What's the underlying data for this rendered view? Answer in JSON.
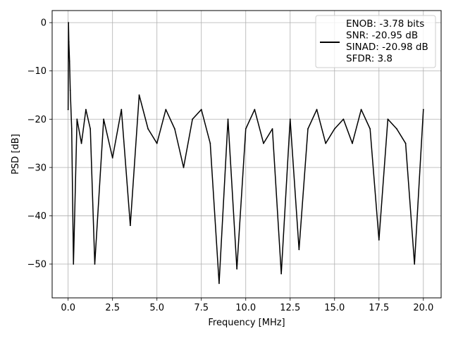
{
  "chart_data": {
    "type": "line",
    "title": "",
    "xlabel": "Frequency [MHz]",
    "ylabel": "PSD [dB]",
    "xlim": [
      -0.9,
      21.0
    ],
    "ylim": [
      -57,
      2.5
    ],
    "xticks": [
      0.0,
      2.5,
      5.0,
      7.5,
      10.0,
      12.5,
      15.0,
      17.5,
      20.0
    ],
    "xtick_labels": [
      "0.0",
      "2.5",
      "5.0",
      "7.5",
      "10.0",
      "12.5",
      "15.0",
      "17.5",
      "20.0"
    ],
    "yticks": [
      0,
      -10,
      -20,
      -30,
      -40,
      -50
    ],
    "ytick_labels": [
      "0",
      "−10",
      "−20",
      "−30",
      "−40",
      "−50"
    ],
    "grid": true,
    "legend_position": "top-right",
    "series": [
      {
        "color": "#000000",
        "legend_lines": [
          "ENOB: -3.78 bits",
          "SNR: -20.95 dB",
          "SINAD: -20.98 dB",
          "SFDR: 3.8"
        ],
        "x": [
          0.0,
          0.02,
          0.04,
          0.08,
          0.12,
          0.2,
          0.3,
          0.5,
          0.75,
          1.0,
          1.25,
          1.5,
          2.0,
          2.5,
          3.0,
          3.5,
          4.0,
          4.5,
          5.0,
          5.5,
          6.0,
          6.5,
          7.0,
          7.5,
          8.0,
          8.5,
          9.0,
          9.5,
          10.0,
          10.5,
          11.0,
          11.5,
          12.0,
          12.5,
          13.0,
          13.5,
          14.0,
          14.5,
          15.0,
          15.5,
          16.0,
          16.5,
          17.0,
          17.5,
          18.0,
          18.5,
          19.0,
          19.5,
          20.0
        ],
        "y": [
          -18,
          0,
          -4,
          -8,
          -14,
          -22,
          -50,
          -20,
          -25,
          -18,
          -22,
          -50,
          -20,
          -28,
          -18,
          -42,
          -15,
          -22,
          -25,
          -18,
          -22,
          -30,
          -20,
          -18,
          -25,
          -54,
          -20,
          -51,
          -22,
          -18,
          -25,
          -22,
          -52,
          -20,
          -47,
          -22,
          -18,
          -25,
          -22,
          -20,
          -25,
          -18,
          -22,
          -45,
          -20,
          -22,
          -25,
          -50,
          -18
        ]
      }
    ]
  }
}
